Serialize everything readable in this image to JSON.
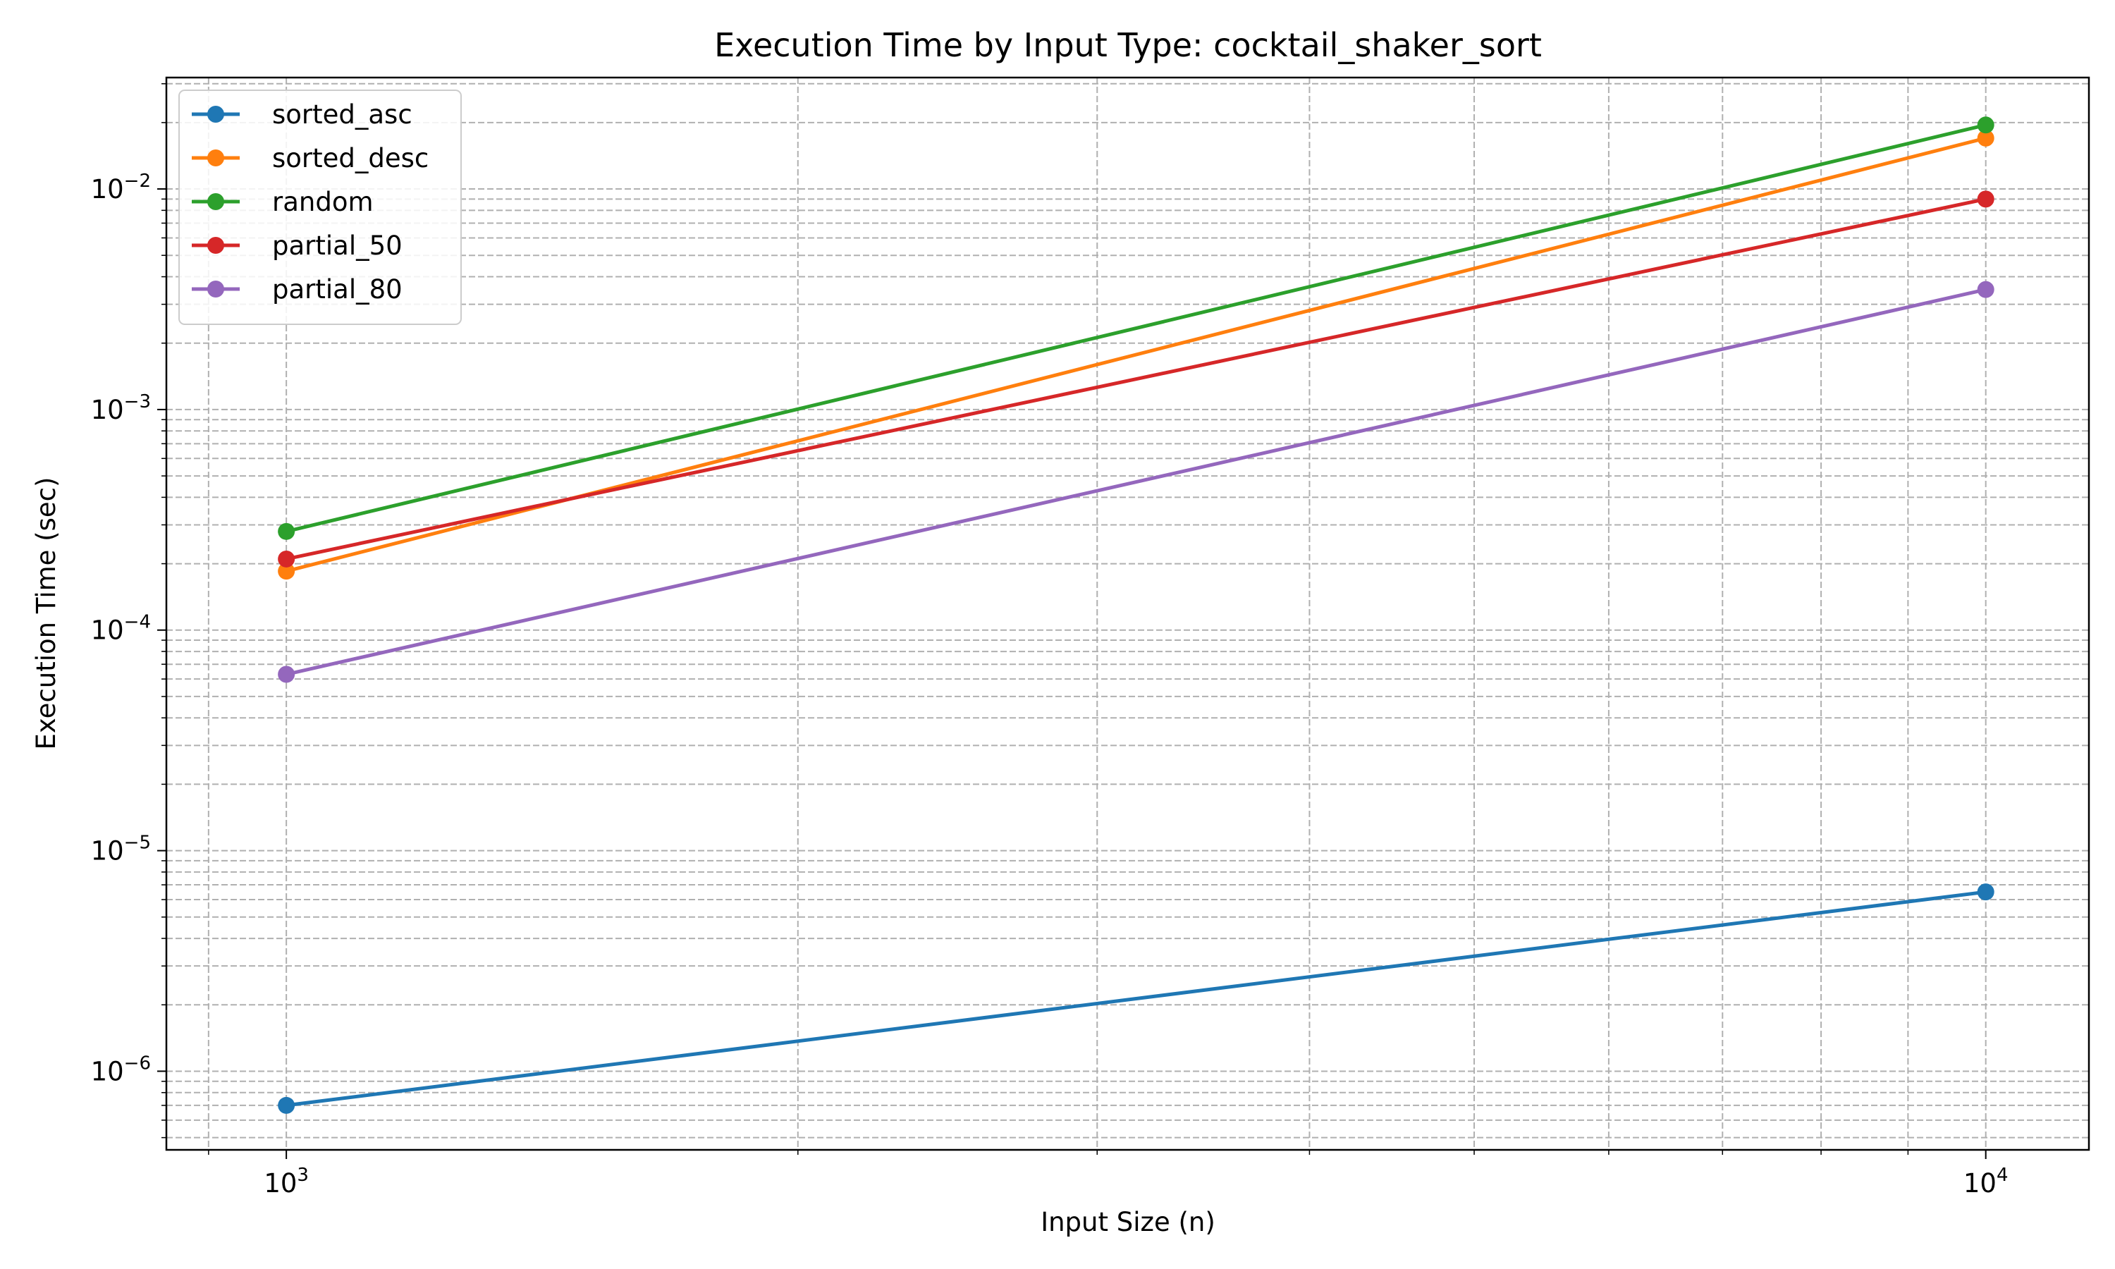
{
  "chart_data": {
    "type": "line",
    "title": "Execution Time by Input Type: cocktail_shaker_sort",
    "xlabel": "Input Size (n)",
    "ylabel": "Execution Time (sec)",
    "xscale": "log",
    "yscale": "log",
    "xlim": [
      850,
      11500
    ],
    "ylim": [
      4.4e-07,
      0.032
    ],
    "x_ticks": [
      {
        "value": 1000,
        "base": "10",
        "exp": "3"
      },
      {
        "value": 10000,
        "base": "10",
        "exp": "4"
      }
    ],
    "y_ticks": [
      {
        "value": 1e-06,
        "base": "10",
        "exp": "−6"
      },
      {
        "value": 1e-05,
        "base": "10",
        "exp": "−5"
      },
      {
        "value": 0.0001,
        "base": "10",
        "exp": "−4"
      },
      {
        "value": 0.001,
        "base": "10",
        "exp": "−3"
      },
      {
        "value": 0.01,
        "base": "10",
        "exp": "−2"
      }
    ],
    "grid": true,
    "grid_style": "dashed",
    "legend_position": "upper-left",
    "x": [
      1000,
      10000
    ],
    "series": [
      {
        "name": "sorted_asc",
        "color": "#1f77b4",
        "values": [
          7e-07,
          6.5e-06
        ]
      },
      {
        "name": "sorted_desc",
        "color": "#ff7f0e",
        "values": [
          0.000185,
          0.017
        ]
      },
      {
        "name": "random",
        "color": "#2ca02c",
        "values": [
          0.00028,
          0.0195
        ]
      },
      {
        "name": "partial_50",
        "color": "#d62728",
        "values": [
          0.00021,
          0.009
        ]
      },
      {
        "name": "partial_80",
        "color": "#9467bd",
        "values": [
          6.3e-05,
          0.0035
        ]
      }
    ]
  }
}
